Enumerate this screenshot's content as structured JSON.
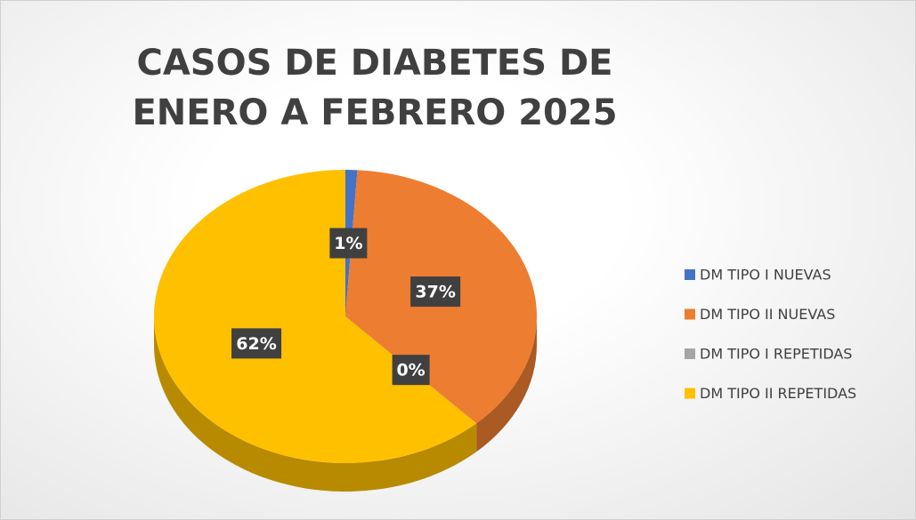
{
  "chart_data": {
    "type": "pie",
    "title": "CASOS DE DIABETES DE ENERO A FEBRERO 2025",
    "categories": [
      "DM TIPO I NUEVAS",
      "DM TIPO II NUEVAS",
      "DM TIPO I REPETIDAS",
      "DM TIPO II REPETIDAS"
    ],
    "values": [
      1,
      37,
      0,
      62
    ],
    "value_labels": [
      "1%",
      "37%",
      "0%",
      "62%"
    ],
    "colors": [
      "#4472c4",
      "#ed7d31",
      "#a5a5a5",
      "#ffc000"
    ],
    "legend": "right"
  }
}
